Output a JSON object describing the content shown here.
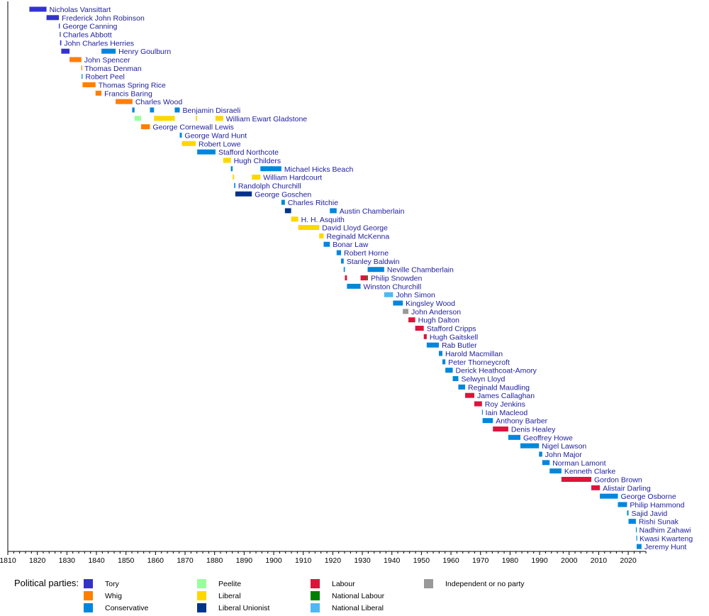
{
  "chart_data": {
    "type": "timeline",
    "title": "",
    "xlim": [
      1810,
      2026
    ],
    "x_ticks": [
      1810,
      1820,
      1830,
      1840,
      1850,
      1860,
      1870,
      1880,
      1890,
      1900,
      1910,
      1920,
      1930,
      1940,
      1950,
      1960,
      1970,
      1980,
      1990,
      2000,
      2010,
      2020
    ],
    "grid": false,
    "legend_position": "bottom",
    "legend_title": "Political parties:",
    "parties": [
      {
        "key": "Tory",
        "name": "Tory",
        "color": "#3333CC"
      },
      {
        "key": "Whig",
        "name": "Whig",
        "color": "#FF7F00"
      },
      {
        "key": "Con",
        "name": "Conservative",
        "color": "#0087DC"
      },
      {
        "key": "Peelite",
        "name": "Peelite",
        "color": "#99FF99"
      },
      {
        "key": "Lib",
        "name": "Liberal",
        "color": "#FFD700"
      },
      {
        "key": "LU",
        "name": "Liberal Unionist",
        "color": "#00338A"
      },
      {
        "key": "Lab",
        "name": "Labour",
        "color": "#DC143C"
      },
      {
        "key": "NatLab",
        "name": "National Labour",
        "color": "#008000"
      },
      {
        "key": "NatLib",
        "name": "National Liberal",
        "color": "#4FB8F0"
      },
      {
        "key": "Ind",
        "name": "Independent or no party",
        "color": "#999999"
      }
    ],
    "rows": [
      {
        "name": "Nicholas Vansittart",
        "terms": [
          [
            1817.3,
            1823.1,
            "Tory"
          ]
        ]
      },
      {
        "name": "Frederick John Robinson",
        "terms": [
          [
            1823.1,
            1827.3,
            "Tory"
          ]
        ]
      },
      {
        "name": "George Canning",
        "terms": [
          [
            1827.3,
            1827.6,
            "Tory"
          ]
        ]
      },
      {
        "name": "Charles Abbott",
        "terms": [
          [
            1827.6,
            1827.7,
            "Tory"
          ]
        ]
      },
      {
        "name": "John Charles Herries",
        "terms": [
          [
            1827.7,
            1828.1,
            "Tory"
          ]
        ]
      },
      {
        "name": "Henry Goulburn",
        "terms": [
          [
            1828.1,
            1830.9,
            "Tory"
          ],
          [
            1841.7,
            1846.5,
            "Con"
          ]
        ]
      },
      {
        "name": "John Spencer",
        "terms": [
          [
            1830.9,
            1834.9,
            "Whig"
          ]
        ]
      },
      {
        "name": "Thomas Denman",
        "terms": [
          [
            1834.9,
            1835.0,
            "Whig"
          ]
        ]
      },
      {
        "name": "Robert Peel",
        "terms": [
          [
            1835.0,
            1835.3,
            "Con"
          ]
        ]
      },
      {
        "name": "Thomas Spring Rice",
        "terms": [
          [
            1835.3,
            1839.7,
            "Whig"
          ]
        ]
      },
      {
        "name": "Francis Baring",
        "terms": [
          [
            1839.7,
            1841.7,
            "Whig"
          ]
        ]
      },
      {
        "name": "Charles Wood",
        "terms": [
          [
            1846.5,
            1852.2,
            "Whig"
          ]
        ]
      },
      {
        "name": "Benjamin Disraeli",
        "terms": [
          [
            1852.1,
            1852.9,
            "Con"
          ],
          [
            1858.1,
            1859.5,
            "Con"
          ],
          [
            1866.5,
            1868.2,
            "Con"
          ]
        ]
      },
      {
        "name": "William Ewart Gladstone",
        "terms": [
          [
            1852.9,
            1855.1,
            "Peelite"
          ],
          [
            1859.5,
            1866.5,
            "Lib"
          ],
          [
            1873.6,
            1874.1,
            "Lib"
          ],
          [
            1880.3,
            1882.9,
            "Lib"
          ]
        ]
      },
      {
        "name": "George Cornewall Lewis",
        "terms": [
          [
            1855.1,
            1858.1,
            "Whig"
          ]
        ]
      },
      {
        "name": "George Ward Hunt",
        "terms": [
          [
            1868.2,
            1868.9,
            "Con"
          ]
        ]
      },
      {
        "name": "Robert Lowe",
        "terms": [
          [
            1868.9,
            1873.6,
            "Lib"
          ]
        ]
      },
      {
        "name": "Stafford Northcote",
        "terms": [
          [
            1874.1,
            1880.3,
            "Con"
          ]
        ]
      },
      {
        "name": "Hugh Childers",
        "terms": [
          [
            1882.9,
            1885.5,
            "Lib"
          ]
        ]
      },
      {
        "name": "Michael Hicks Beach",
        "terms": [
          [
            1885.5,
            1886.1,
            "Con"
          ],
          [
            1895.5,
            1902.6,
            "Con"
          ]
        ]
      },
      {
        "name": "William Hardcourt",
        "terms": [
          [
            1886.1,
            1886.6,
            "Lib"
          ],
          [
            1892.6,
            1895.5,
            "Lib"
          ]
        ]
      },
      {
        "name": "Randolph Churchill",
        "terms": [
          [
            1886.6,
            1887.0,
            "Con"
          ]
        ]
      },
      {
        "name": "George Goschen",
        "terms": [
          [
            1887.0,
            1892.6,
            "LU"
          ]
        ]
      },
      {
        "name": "Charles Ritchie",
        "terms": [
          [
            1902.6,
            1903.8,
            "Con"
          ]
        ]
      },
      {
        "name": "Austin Chamberlain",
        "terms": [
          [
            1903.8,
            1905.9,
            "LU"
          ],
          [
            1919.0,
            1921.3,
            "Con"
          ]
        ]
      },
      {
        "name": "H. H. Asquith",
        "terms": [
          [
            1905.9,
            1908.3,
            "Lib"
          ]
        ]
      },
      {
        "name": "David Lloyd George",
        "terms": [
          [
            1908.3,
            1915.4,
            "Lib"
          ]
        ]
      },
      {
        "name": "Reginald McKenna",
        "terms": [
          [
            1915.4,
            1916.9,
            "Lib"
          ]
        ]
      },
      {
        "name": "Bonar Law",
        "terms": [
          [
            1916.9,
            1919.0,
            "Con"
          ]
        ]
      },
      {
        "name": "Robert Horne",
        "terms": [
          [
            1921.3,
            1922.8,
            "Con"
          ]
        ]
      },
      {
        "name": "Stanley Baldwin",
        "terms": [
          [
            1922.8,
            1923.7,
            "Con"
          ]
        ]
      },
      {
        "name": "Neville Chamberlain",
        "terms": [
          [
            1923.7,
            1924.1,
            "Con"
          ],
          [
            1931.8,
            1937.4,
            "Con"
          ]
        ]
      },
      {
        "name": "Philip Snowden",
        "terms": [
          [
            1924.1,
            1924.8,
            "Lab"
          ],
          [
            1929.4,
            1931.6,
            "Lab"
          ],
          [
            1931.6,
            1931.9,
            "NatLab"
          ]
        ]
      },
      {
        "name": "Winston Churchill",
        "terms": [
          [
            1924.8,
            1929.4,
            "Con"
          ]
        ]
      },
      {
        "name": "John Simon",
        "terms": [
          [
            1937.4,
            1940.4,
            "NatLib"
          ]
        ]
      },
      {
        "name": "Kingsley Wood",
        "terms": [
          [
            1940.4,
            1943.7,
            "Con"
          ]
        ]
      },
      {
        "name": "John Anderson",
        "terms": [
          [
            1943.7,
            1945.6,
            "Ind"
          ]
        ]
      },
      {
        "name": "Hugh Dalton",
        "terms": [
          [
            1945.6,
            1947.9,
            "Lab"
          ]
        ]
      },
      {
        "name": "Stafford Cripps",
        "terms": [
          [
            1947.9,
            1950.8,
            "Lab"
          ]
        ]
      },
      {
        "name": "Hugh Gaitskell",
        "terms": [
          [
            1950.8,
            1951.8,
            "Lab"
          ]
        ]
      },
      {
        "name": "Rab Butler",
        "terms": [
          [
            1951.8,
            1955.9,
            "Con"
          ]
        ]
      },
      {
        "name": "Harold Macmillan",
        "terms": [
          [
            1955.9,
            1957.1,
            "Con"
          ]
        ]
      },
      {
        "name": "Peter Thorneycroft",
        "terms": [
          [
            1957.1,
            1958.1,
            "Con"
          ]
        ]
      },
      {
        "name": "Derick Heathcoat-Amory",
        "terms": [
          [
            1958.1,
            1960.6,
            "Con"
          ]
        ]
      },
      {
        "name": "Selwyn Lloyd",
        "terms": [
          [
            1960.6,
            1962.5,
            "Con"
          ]
        ]
      },
      {
        "name": "Reginald Maudling",
        "terms": [
          [
            1962.5,
            1964.8,
            "Con"
          ]
        ]
      },
      {
        "name": "James Callaghan",
        "terms": [
          [
            1964.8,
            1967.9,
            "Lab"
          ]
        ]
      },
      {
        "name": "Roy Jenkins",
        "terms": [
          [
            1967.9,
            1970.5,
            "Lab"
          ]
        ]
      },
      {
        "name": "Iain Macleod",
        "terms": [
          [
            1970.5,
            1970.7,
            "Con"
          ]
        ]
      },
      {
        "name": "Anthony Barber",
        "terms": [
          [
            1970.7,
            1974.2,
            "Con"
          ]
        ]
      },
      {
        "name": "Denis Healey",
        "terms": [
          [
            1974.2,
            1979.4,
            "Lab"
          ]
        ]
      },
      {
        "name": "Geoffrey Howe",
        "terms": [
          [
            1979.4,
            1983.5,
            "Con"
          ]
        ]
      },
      {
        "name": "Nigel Lawson",
        "terms": [
          [
            1983.5,
            1989.8,
            "Con"
          ]
        ]
      },
      {
        "name": "John Major",
        "terms": [
          [
            1989.8,
            1990.9,
            "Con"
          ]
        ]
      },
      {
        "name": "Norman Lamont",
        "terms": [
          [
            1990.9,
            1993.4,
            "Con"
          ]
        ]
      },
      {
        "name": "Kenneth Clarke",
        "terms": [
          [
            1993.4,
            1997.4,
            "Con"
          ]
        ]
      },
      {
        "name": "Gordon Brown",
        "terms": [
          [
            1997.4,
            2007.5,
            "Lab"
          ]
        ]
      },
      {
        "name": "Alistair Darling",
        "terms": [
          [
            2007.5,
            2010.4,
            "Lab"
          ]
        ]
      },
      {
        "name": "George Osborne",
        "terms": [
          [
            2010.4,
            2016.5,
            "Con"
          ]
        ]
      },
      {
        "name": "Philip Hammond",
        "terms": [
          [
            2016.5,
            2019.6,
            "Con"
          ]
        ]
      },
      {
        "name": "Sajid Javid",
        "terms": [
          [
            2019.6,
            2020.1,
            "Con"
          ]
        ]
      },
      {
        "name": "Rishi Sunak",
        "terms": [
          [
            2020.1,
            2022.6,
            "Con"
          ]
        ]
      },
      {
        "name": "Nadhim Zahawi",
        "terms": [
          [
            2022.6,
            2022.75,
            "Con"
          ]
        ]
      },
      {
        "name": "Kwasi Kwarteng",
        "terms": [
          [
            2022.75,
            2022.85,
            "Con"
          ]
        ]
      },
      {
        "name": "Jeremy Hunt",
        "terms": [
          [
            2022.85,
            2024.5,
            "Con"
          ]
        ]
      }
    ]
  }
}
